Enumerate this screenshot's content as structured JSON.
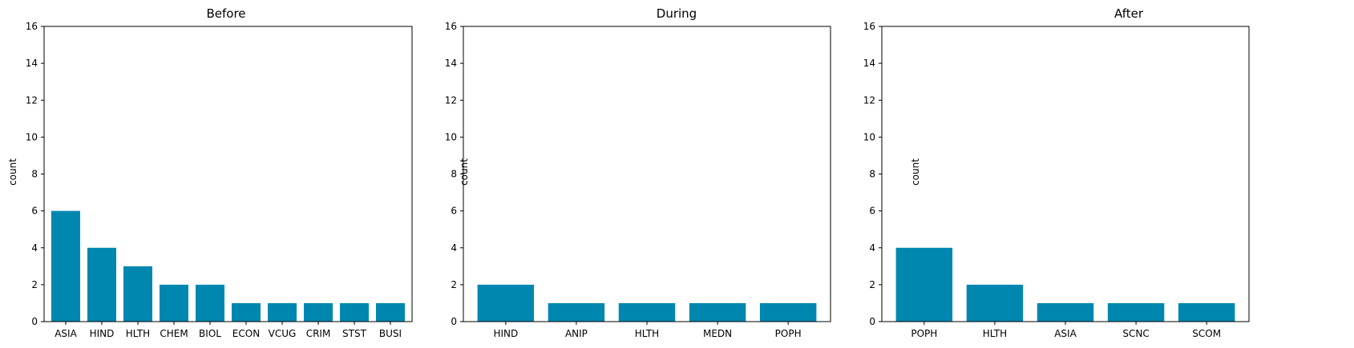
{
  "colors": {
    "bar": "#0087b0",
    "axis": "#000000",
    "background": "#ffffff"
  },
  "chart_data": [
    {
      "type": "bar",
      "title": "Before",
      "xlabel": "",
      "ylabel": "count",
      "ylim": [
        0,
        16
      ],
      "yticks": [
        0,
        2,
        4,
        6,
        8,
        10,
        12,
        14,
        16
      ],
      "categories": [
        "ASIA",
        "HIND",
        "HLTH",
        "CHEM",
        "BIOL",
        "ECON",
        "VCUG",
        "CRIM",
        "STST",
        "BUSI"
      ],
      "values": [
        6,
        4,
        3,
        2,
        2,
        1,
        1,
        1,
        1,
        1
      ],
      "grid": false
    },
    {
      "type": "bar",
      "title": "During",
      "xlabel": "",
      "ylabel": "count",
      "ylim": [
        0,
        16
      ],
      "yticks": [
        0,
        2,
        4,
        6,
        8,
        10,
        12,
        14,
        16
      ],
      "categories": [
        "HIND",
        "ANIP",
        "HLTH",
        "MEDN",
        "POPH"
      ],
      "values": [
        2,
        1,
        1,
        1,
        1
      ],
      "grid": false
    },
    {
      "type": "bar",
      "title": "After",
      "xlabel": "",
      "ylabel": "count",
      "ylim": [
        0,
        16
      ],
      "yticks": [
        0,
        2,
        4,
        6,
        8,
        10,
        12,
        14,
        16
      ],
      "categories": [
        "POPH",
        "HLTH",
        "ASIA",
        "SCNC",
        "SCOM"
      ],
      "values": [
        4,
        2,
        1,
        1,
        1
      ],
      "grid": false
    }
  ]
}
